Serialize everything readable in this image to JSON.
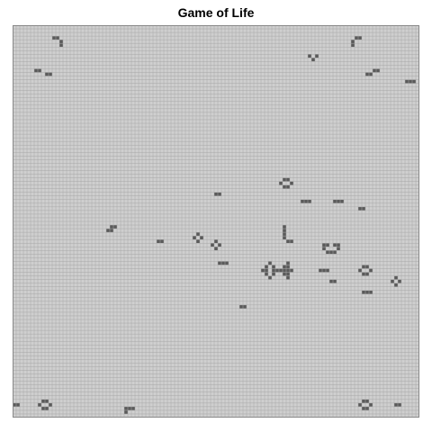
{
  "title": "Game of Life",
  "grid": {
    "cols": 113,
    "rows": 108,
    "background_color": "#cfcfcf",
    "line_color": "#a8a8a8",
    "alive_color": "#5a5a5a",
    "border_color": "#888888",
    "live_cells": [
      [
        11,
        3
      ],
      [
        12,
        3
      ],
      [
        13,
        4
      ],
      [
        13,
        5
      ],
      [
        6,
        12
      ],
      [
        7,
        12
      ],
      [
        9,
        13
      ],
      [
        10,
        13
      ],
      [
        95,
        3
      ],
      [
        96,
        3
      ],
      [
        94,
        4
      ],
      [
        94,
        5
      ],
      [
        82,
        8
      ],
      [
        84,
        8
      ],
      [
        83,
        9
      ],
      [
        100,
        12
      ],
      [
        101,
        12
      ],
      [
        98,
        13
      ],
      [
        99,
        13
      ],
      [
        109,
        15
      ],
      [
        110,
        15
      ],
      [
        111,
        15
      ],
      [
        75,
        42
      ],
      [
        76,
        42
      ],
      [
        74,
        43
      ],
      [
        77,
        43
      ],
      [
        75,
        44
      ],
      [
        76,
        44
      ],
      [
        56,
        46
      ],
      [
        57,
        46
      ],
      [
        80,
        48
      ],
      [
        81,
        48
      ],
      [
        82,
        48
      ],
      [
        89,
        48
      ],
      [
        90,
        48
      ],
      [
        91,
        48
      ],
      [
        96,
        50
      ],
      [
        97,
        50
      ],
      [
        27,
        55
      ],
      [
        28,
        55
      ],
      [
        26,
        56
      ],
      [
        27,
        56
      ],
      [
        51,
        57
      ],
      [
        50,
        58
      ],
      [
        52,
        58
      ],
      [
        51,
        59
      ],
      [
        40,
        59
      ],
      [
        41,
        59
      ],
      [
        56,
        59
      ],
      [
        55,
        60
      ],
      [
        57,
        60
      ],
      [
        56,
        61
      ],
      [
        75,
        55
      ],
      [
        75,
        56
      ],
      [
        75,
        57
      ],
      [
        75,
        58
      ],
      [
        76,
        59
      ],
      [
        77,
        59
      ],
      [
        86,
        60
      ],
      [
        87,
        60
      ],
      [
        89,
        60
      ],
      [
        90,
        60
      ],
      [
        86,
        61
      ],
      [
        90,
        61
      ],
      [
        87,
        62
      ],
      [
        88,
        62
      ],
      [
        89,
        62
      ],
      [
        57,
        65
      ],
      [
        58,
        65
      ],
      [
        59,
        65
      ],
      [
        71,
        65
      ],
      [
        70,
        66
      ],
      [
        72,
        66
      ],
      [
        69,
        67
      ],
      [
        73,
        67
      ],
      [
        70,
        68
      ],
      [
        72,
        68
      ],
      [
        71,
        69
      ],
      [
        76,
        65
      ],
      [
        75,
        66
      ],
      [
        76,
        66
      ],
      [
        74,
        67
      ],
      [
        75,
        67
      ],
      [
        76,
        67
      ],
      [
        77,
        67
      ],
      [
        75,
        68
      ],
      [
        76,
        68
      ],
      [
        76,
        69
      ],
      [
        70,
        67
      ],
      [
        72,
        67
      ],
      [
        85,
        67
      ],
      [
        86,
        67
      ],
      [
        87,
        67
      ],
      [
        97,
        66
      ],
      [
        98,
        66
      ],
      [
        96,
        67
      ],
      [
        99,
        67
      ],
      [
        97,
        68
      ],
      [
        98,
        68
      ],
      [
        88,
        70
      ],
      [
        89,
        70
      ],
      [
        106,
        69
      ],
      [
        105,
        70
      ],
      [
        107,
        70
      ],
      [
        106,
        71
      ],
      [
        97,
        73
      ],
      [
        98,
        73
      ],
      [
        99,
        73
      ],
      [
        63,
        77
      ],
      [
        64,
        77
      ],
      [
        0,
        104
      ],
      [
        1,
        104
      ],
      [
        8,
        103
      ],
      [
        9,
        103
      ],
      [
        7,
        104
      ],
      [
        10,
        104
      ],
      [
        8,
        105
      ],
      [
        9,
        105
      ],
      [
        31,
        105
      ],
      [
        32,
        105
      ],
      [
        33,
        105
      ],
      [
        31,
        106
      ],
      [
        97,
        103
      ],
      [
        98,
        103
      ],
      [
        96,
        104
      ],
      [
        99,
        104
      ],
      [
        97,
        105
      ],
      [
        98,
        105
      ],
      [
        106,
        104
      ],
      [
        107,
        104
      ]
    ]
  }
}
